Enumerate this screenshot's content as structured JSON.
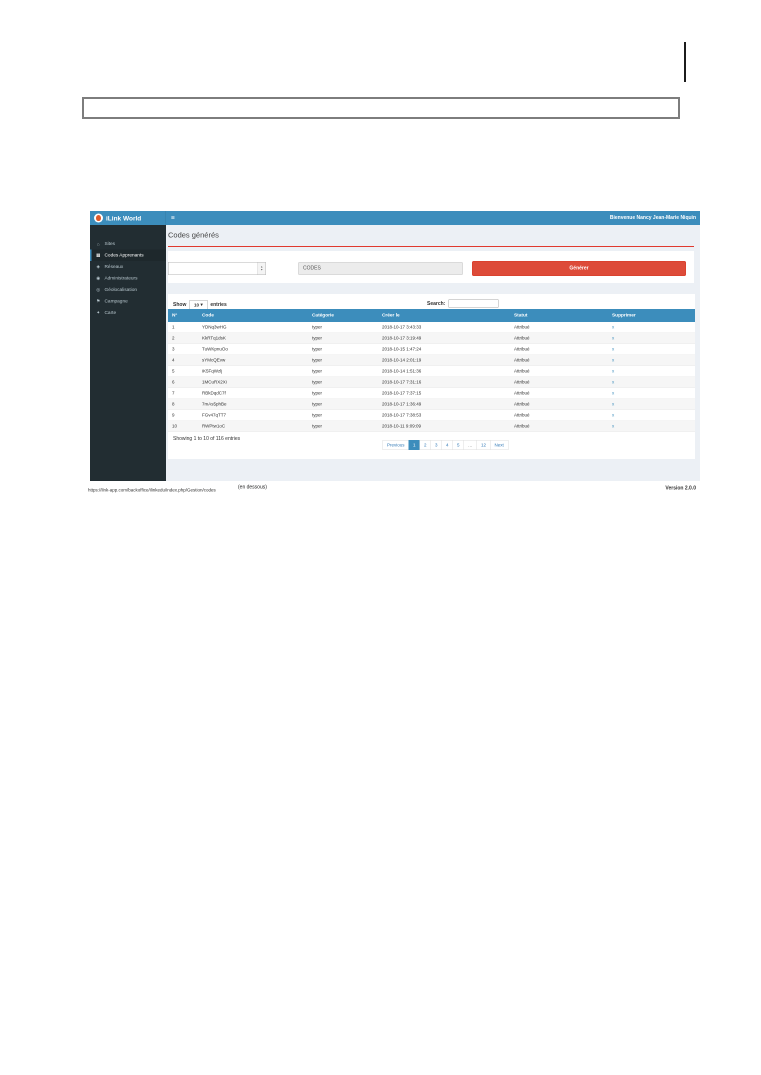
{
  "colors": {
    "accent_blue": "#3c8dbc",
    "sidebar_dark": "#222d32",
    "danger_red": "#dd4b39",
    "divider_red": "#e0392e",
    "content_bg": "#ecf0f5"
  },
  "document": {
    "note": "(en dessous)",
    "status_url": "https://ilnk-app.com/backoffice/ilinkedu/index.php/Gestion/codes",
    "version": "Version 2.0.0"
  },
  "navbar": {
    "brand": "iLink World",
    "toggle_icon": "≡",
    "welcome": "Bienvenue Nancy Jean-Marie Niquin"
  },
  "sidebar": {
    "items": [
      {
        "label": "Sites",
        "icon": "⌂"
      },
      {
        "label": "Codes Apprenants",
        "icon": "▦"
      },
      {
        "label": "Réseaux",
        "icon": "◈"
      },
      {
        "label": "Administrateurs",
        "icon": "◉"
      },
      {
        "label": "Géolocalisation",
        "icon": "◎"
      },
      {
        "label": "Campagne",
        "icon": "⚑"
      },
      {
        "label": "Carte",
        "icon": "✦"
      }
    ]
  },
  "content": {
    "title": "Codes générés",
    "generator": {
      "count_value": "",
      "codes_label": "CODES",
      "button_label": "Générer",
      "spinner_up": "▴",
      "spinner_down": "▾"
    },
    "controls": {
      "show_label": "Show",
      "show_value": "10",
      "select_caret": "▾",
      "entries_label": "entries",
      "search_label": "Search:",
      "search_value": ""
    },
    "table": {
      "headers": [
        "N°",
        "Code",
        "Catégorie",
        "Créer le",
        "Statut",
        "Supprimer"
      ],
      "rows": [
        [
          "1",
          "YDNq3wHG",
          "typer",
          "2018-10-17 3:43:33",
          "Attribué",
          "x"
        ],
        [
          "2",
          "KkRTq1dsK",
          "typer",
          "2018-10-17 3:19:49",
          "Attribué",
          "x"
        ],
        [
          "3",
          "TuWKpnuOo",
          "typer",
          "2018-10-15 1:47:24",
          "Attribué",
          "x"
        ],
        [
          "4",
          "sYMcQEvw",
          "typer",
          "2018-10-14 2:01:19",
          "Attribué",
          "x"
        ],
        [
          "5",
          "iK5FqWzlj",
          "typer",
          "2018-10-14 1:51:36",
          "Attribué",
          "x"
        ],
        [
          "6",
          "1MCuRX2Xi",
          "typer",
          "2018-10-17 7:31:16",
          "Attribué",
          "x"
        ],
        [
          "7",
          "RBkDqdC7f",
          "typer",
          "2018-10-17 7:37:15",
          "Attribué",
          "x"
        ],
        [
          "8",
          "7mAs5phBe",
          "typer",
          "2018-10-17 1:36:49",
          "Attribué",
          "x"
        ],
        [
          "9",
          "FGv47qTT7",
          "typer",
          "2018-10-17 7:38:53",
          "Attribué",
          "x"
        ],
        [
          "10",
          "RWPtw1oC",
          "typer",
          "2018-10-11 9:09:09",
          "Attribué",
          "x"
        ]
      ]
    },
    "footer": {
      "showing": "Showing 1 to 10 of 116 entries",
      "pagination": [
        "Previous",
        "1",
        "2",
        "3",
        "4",
        "5",
        "…",
        "12",
        "Next"
      ]
    }
  }
}
